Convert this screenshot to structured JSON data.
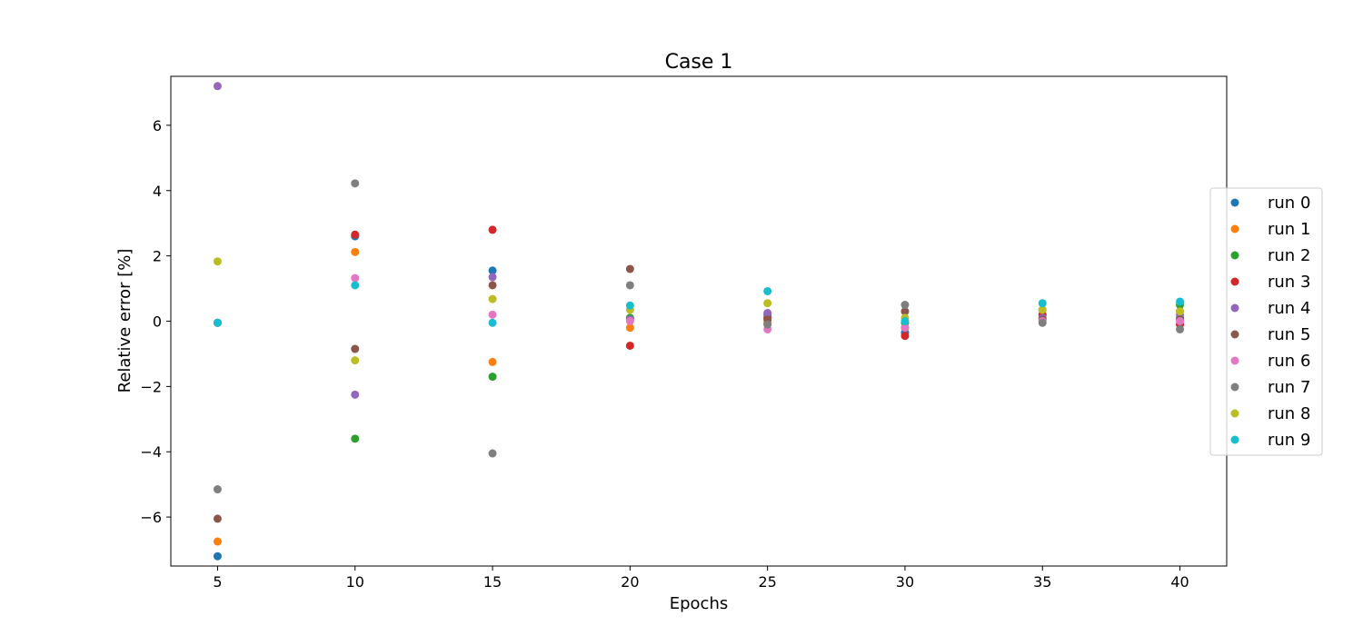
{
  "chart_data": {
    "type": "scatter",
    "title": "Case 1",
    "xlabel": "Epochs",
    "ylabel": "Relative error [%]",
    "xlim": [
      3.3,
      41.7
    ],
    "ylim": [
      -7.5,
      7.5
    ],
    "xticks": [
      5,
      10,
      15,
      20,
      25,
      30,
      35,
      40
    ],
    "yticks": [
      -6,
      -4,
      -2,
      0,
      2,
      4,
      6
    ],
    "grid": false,
    "legend_position": "right",
    "x": [
      5,
      10,
      15,
      20,
      25,
      30,
      35,
      40
    ],
    "series": [
      {
        "name": "run 0",
        "color": "#1f77b4",
        "values": [
          -7.2,
          2.6,
          1.55,
          0.1,
          0.2,
          -0.35,
          0.35,
          0.1
        ]
      },
      {
        "name": "run 1",
        "color": "#ff7f0e",
        "values": [
          -6.75,
          2.12,
          -1.25,
          -0.2,
          -0.05,
          -0.2,
          0.1,
          0.3
        ]
      },
      {
        "name": "run 2",
        "color": "#2ca02c",
        "values": [
          -0.05,
          -3.6,
          -1.7,
          0.1,
          0.1,
          -0.05,
          0.2,
          0.5
        ]
      },
      {
        "name": "run 3",
        "color": "#d62728",
        "values": [
          -0.05,
          2.65,
          2.8,
          -0.75,
          0.1,
          -0.45,
          0.2,
          -0.1
        ]
      },
      {
        "name": "run 4",
        "color": "#9467bd",
        "values": [
          7.2,
          -2.25,
          1.35,
          0.05,
          0.25,
          -0.2,
          0.1,
          0.2
        ]
      },
      {
        "name": "run 5",
        "color": "#8c564b",
        "values": [
          -6.05,
          -0.85,
          1.1,
          1.6,
          0.05,
          0.3,
          0.05,
          0.05
        ]
      },
      {
        "name": "run 6",
        "color": "#e377c2",
        "values": [
          -0.05,
          1.32,
          0.2,
          0.0,
          -0.25,
          -0.2,
          0.0,
          0.0
        ]
      },
      {
        "name": "run 7",
        "color": "#7f7f7f",
        "values": [
          -5.15,
          4.22,
          -4.05,
          1.1,
          -0.1,
          0.5,
          -0.05,
          -0.25
        ]
      },
      {
        "name": "run 8",
        "color": "#bcbd22",
        "values": [
          1.83,
          -1.2,
          0.68,
          0.35,
          0.55,
          0.1,
          0.35,
          0.3
        ]
      },
      {
        "name": "run 9",
        "color": "#17becf",
        "values": [
          -0.05,
          1.1,
          -0.05,
          0.48,
          0.92,
          0.0,
          0.55,
          0.6
        ]
      }
    ]
  }
}
